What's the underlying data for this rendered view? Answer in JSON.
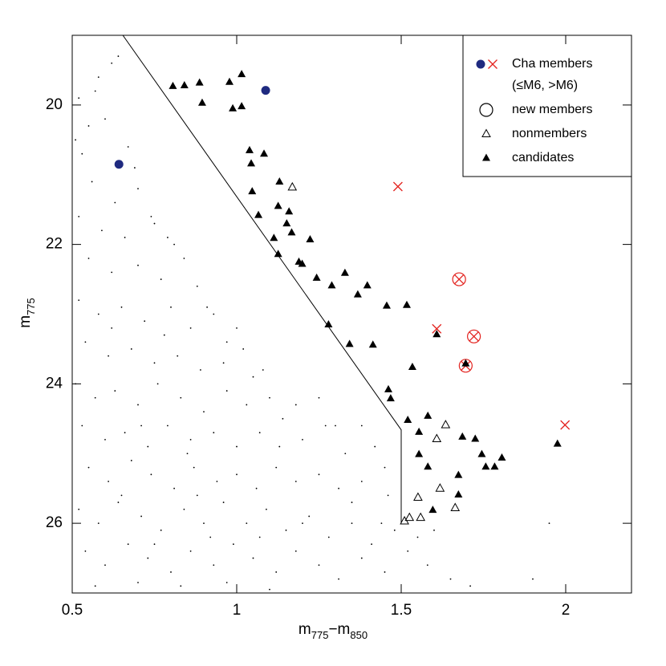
{
  "chart_data": {
    "type": "scatter",
    "xlabel": [
      {
        "text": "m"
      },
      {
        "text": "775",
        "sub": true
      },
      {
        "text": "−m"
      },
      {
        "text": "850",
        "sub": true
      }
    ],
    "ylabel": [
      {
        "text": "m"
      },
      {
        "text": "775",
        "sub": true
      }
    ],
    "xlim": [
      0.5,
      2.2
    ],
    "ylim": [
      19,
      27
    ],
    "y_inverted": true,
    "xticks": [
      0.5,
      1,
      1.5,
      2
    ],
    "yticks": [
      20,
      22,
      24,
      26
    ],
    "legend": "upper right",
    "boundary": {
      "color": "#000000",
      "x": [
        0.654,
        1.5,
        1.5
      ],
      "y": [
        19.0,
        24.66,
        26.0
      ]
    },
    "series": [
      {
        "name": "Cha members",
        "name_detail": "(≤M6, >M6)",
        "parts": [
          {
            "marker": "dot",
            "color": "#1f2a80",
            "x": [
              0.642,
              1.088
            ],
            "y": [
              20.85,
              19.79
            ]
          },
          {
            "marker": "cross",
            "color": "#e3231f",
            "x": [
              1.49,
              1.608,
              1.998,
              1.676,
              1.721,
              1.696
            ],
            "y": [
              21.17,
              23.21,
              24.59,
              22.5,
              23.32,
              23.74
            ]
          }
        ]
      },
      {
        "name": "new members",
        "marker": "circle",
        "color": "#e3231f",
        "legend_color": "#000000",
        "x": [
          1.676,
          1.721,
          1.696
        ],
        "y": [
          22.5,
          23.32,
          23.74
        ]
      },
      {
        "name": "nonmembers",
        "marker": "open-triangle",
        "color": "#000000",
        "x": [
          1.169,
          1.608,
          1.635,
          1.618,
          1.551,
          1.559,
          1.525,
          1.51,
          1.664
        ],
        "y": [
          21.18,
          24.79,
          24.59,
          25.5,
          25.63,
          25.92,
          25.92,
          25.97,
          25.78
        ]
      },
      {
        "name": "candidates",
        "marker": "triangle",
        "color": "#000000",
        "x": [
          0.806,
          0.841,
          0.887,
          0.978,
          1.015,
          0.895,
          0.988,
          1.015,
          1.039,
          1.044,
          1.083,
          1.13,
          1.047,
          1.126,
          1.159,
          1.066,
          1.113,
          1.152,
          1.167,
          1.223,
          1.126,
          1.189,
          1.199,
          1.243,
          1.289,
          1.329,
          1.368,
          1.397,
          1.279,
          1.343,
          1.414,
          1.456,
          1.517,
          1.608,
          1.534,
          1.461,
          1.468,
          1.52,
          1.581,
          1.554,
          1.554,
          1.581,
          1.686,
          1.725,
          1.745,
          1.757,
          1.784,
          1.806,
          1.674,
          1.674,
          1.596,
          1.975,
          1.696
        ],
        "y": [
          19.73,
          19.72,
          19.68,
          19.67,
          19.56,
          19.97,
          20.05,
          20.02,
          20.65,
          20.84,
          20.7,
          21.1,
          21.24,
          21.45,
          21.53,
          21.58,
          21.91,
          21.7,
          21.83,
          21.93,
          22.14,
          22.25,
          22.28,
          22.48,
          22.59,
          22.41,
          22.72,
          22.59,
          23.15,
          23.43,
          23.44,
          22.88,
          22.87,
          23.29,
          23.76,
          24.08,
          24.21,
          24.52,
          24.46,
          24.69,
          25.01,
          25.19,
          24.76,
          24.79,
          25.01,
          25.19,
          25.19,
          25.06,
          25.31,
          25.59,
          25.81,
          24.86,
          23.71
        ]
      },
      {
        "marker": "point",
        "color": "#000000",
        "x": [
          0.52,
          0.55,
          0.58,
          0.62,
          0.53,
          0.6,
          0.67,
          0.56,
          0.63,
          0.7,
          0.52,
          0.59,
          0.66,
          0.74,
          0.79,
          0.55,
          0.62,
          0.7,
          0.77,
          0.84,
          0.88,
          0.52,
          0.58,
          0.65,
          0.72,
          0.8,
          0.86,
          0.93,
          0.97,
          0.54,
          0.61,
          0.68,
          0.75,
          0.82,
          0.89,
          0.96,
          1.02,
          1.05,
          0.51,
          0.57,
          0.63,
          0.7,
          0.76,
          0.83,
          0.9,
          0.97,
          1.03,
          1.1,
          1.14,
          0.53,
          0.6,
          0.66,
          0.73,
          0.79,
          0.86,
          0.93,
          1.0,
          1.07,
          1.13,
          1.2,
          1.27,
          1.33,
          1.42,
          0.55,
          0.61,
          0.68,
          0.74,
          0.81,
          0.87,
          0.94,
          1.0,
          1.06,
          1.12,
          1.18,
          1.25,
          1.31,
          1.38,
          1.46,
          0.52,
          0.58,
          0.64,
          0.71,
          0.77,
          0.84,
          0.9,
          0.96,
          1.03,
          1.09,
          1.15,
          1.22,
          1.28,
          1.35,
          1.41,
          1.48,
          0.54,
          0.6,
          0.67,
          0.73,
          0.8,
          0.86,
          0.93,
          0.99,
          1.05,
          1.12,
          1.18,
          1.25,
          1.31,
          1.38,
          1.45,
          1.52,
          1.58,
          1.65,
          1.71,
          1.9,
          1.95,
          0.57,
          0.7,
          0.83,
          0.97,
          1.1,
          1.55,
          1.6,
          0.64,
          0.57,
          0.51,
          0.69,
          0.75,
          0.81,
          0.91,
          1.0,
          1.08,
          1.18,
          1.25,
          1.3,
          1.38,
          1.45,
          1.35,
          1.44,
          0.62,
          0.78,
          0.71,
          0.85,
          0.65,
          0.88,
          0.75,
          0.92,
          1.07,
          1.2
        ],
        "y": [
          19.9,
          20.3,
          19.6,
          19.4,
          20.7,
          20.2,
          20.6,
          21.1,
          21.4,
          21.2,
          21.6,
          21.8,
          21.9,
          21.6,
          21.9,
          22.2,
          22.4,
          22.3,
          22.5,
          22.2,
          22.6,
          22.8,
          23.0,
          22.9,
          23.1,
          22.9,
          23.2,
          23.0,
          23.4,
          23.4,
          23.6,
          23.5,
          23.7,
          23.6,
          23.8,
          23.7,
          23.5,
          23.9,
          24.0,
          24.2,
          24.1,
          24.3,
          24.0,
          24.2,
          24.4,
          24.1,
          24.3,
          24.2,
          24.5,
          24.6,
          24.8,
          24.7,
          24.9,
          24.6,
          24.8,
          24.7,
          24.9,
          24.7,
          24.9,
          24.8,
          24.6,
          25.0,
          24.9,
          25.2,
          25.4,
          25.1,
          25.3,
          25.5,
          25.2,
          25.4,
          25.3,
          25.5,
          25.2,
          25.4,
          25.3,
          25.5,
          25.4,
          25.6,
          25.8,
          26.0,
          25.7,
          25.9,
          26.1,
          25.8,
          26.0,
          25.7,
          26.0,
          25.8,
          26.1,
          25.9,
          26.2,
          26.0,
          26.3,
          26.1,
          26.4,
          26.6,
          26.3,
          26.5,
          26.7,
          26.4,
          26.6,
          26.3,
          26.5,
          26.7,
          26.4,
          26.6,
          26.8,
          26.5,
          26.7,
          26.4,
          26.6,
          26.8,
          26.9,
          26.8,
          26.0,
          26.9,
          26.85,
          26.9,
          26.85,
          26.95,
          26.2,
          26.1,
          19.3,
          19.8,
          20.5,
          20.9,
          21.7,
          22.0,
          22.9,
          23.2,
          23.8,
          24.3,
          24.2,
          24.6,
          24.6,
          25.2,
          25.7,
          26.0,
          23.2,
          23.3,
          24.6,
          25.0,
          25.6,
          25.6,
          26.3,
          26.2,
          26.2,
          26.0
        ]
      }
    ]
  }
}
